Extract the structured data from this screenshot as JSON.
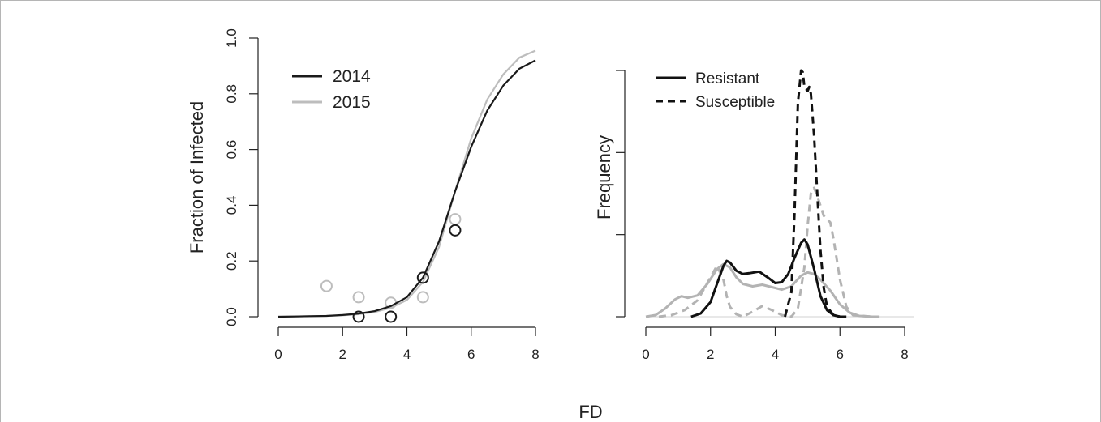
{
  "shared_xlabel": "FD",
  "chart_data": [
    {
      "type": "line",
      "title": "",
      "xlabel": "",
      "ylabel": "Fraction of Infected",
      "xlim": [
        0,
        8
      ],
      "ylim": [
        0,
        1
      ],
      "xticks": [
        "0",
        "2",
        "4",
        "6",
        "8"
      ],
      "yticks": [
        "0.0",
        "0.2",
        "0.4",
        "0.6",
        "0.8",
        "1.0"
      ],
      "legend_position": "top-left",
      "series": [
        {
          "name": "2014",
          "color": "#1a1a1a",
          "curve_x": [
            0,
            0.5,
            1,
            1.5,
            2,
            2.5,
            3,
            3.5,
            4,
            4.5,
            5,
            5.5,
            6,
            6.5,
            7,
            7.5,
            8
          ],
          "curve_y": [
            0.0,
            0.001,
            0.002,
            0.003,
            0.006,
            0.011,
            0.02,
            0.038,
            0.07,
            0.14,
            0.27,
            0.45,
            0.61,
            0.74,
            0.83,
            0.89,
            0.92
          ],
          "points_x": [
            2.5,
            3.5,
            4.5,
            5.5
          ],
          "points_y": [
            0.0,
            0.0,
            0.14,
            0.31
          ]
        },
        {
          "name": "2015",
          "color": "#bdbdbd",
          "curve_x": [
            0,
            0.5,
            1,
            1.5,
            2,
            2.5,
            3,
            3.5,
            4,
            4.5,
            5,
            5.5,
            6,
            6.5,
            7,
            7.5,
            8
          ],
          "curve_y": [
            0.0,
            0.001,
            0.002,
            0.003,
            0.005,
            0.009,
            0.017,
            0.032,
            0.06,
            0.125,
            0.25,
            0.45,
            0.64,
            0.78,
            0.87,
            0.93,
            0.955
          ],
          "points_x": [
            1.5,
            2.5,
            3.5,
            4.5,
            5.5
          ],
          "points_y": [
            0.11,
            0.07,
            0.05,
            0.07,
            0.35
          ]
        }
      ]
    },
    {
      "type": "line",
      "title": "",
      "xlabel": "",
      "ylabel": "Frequency",
      "xlim": [
        0,
        8
      ],
      "ylim": [
        0,
        0.3
      ],
      "xticks": [
        "0",
        "2",
        "4",
        "6",
        "8"
      ],
      "yticks": [
        "",
        "",
        "",
        ""
      ],
      "legend_position": "top-left",
      "legend": [
        {
          "label": "Resistant",
          "style": "solid"
        },
        {
          "label": "Susceptible",
          "style": "dashed"
        }
      ],
      "series": [
        {
          "group": "Resistant",
          "year": "2014",
          "color": "#111111",
          "dash": "",
          "x": [
            1.4,
            1.7,
            2.0,
            2.2,
            2.4,
            2.5,
            2.6,
            2.8,
            3.0,
            3.2,
            3.5,
            3.8,
            4.0,
            4.2,
            4.4,
            4.6,
            4.8,
            4.9,
            5.0,
            5.2,
            5.4,
            5.6,
            5.8,
            6.0,
            6.2
          ],
          "y": [
            0.0,
            0.004,
            0.018,
            0.04,
            0.062,
            0.068,
            0.066,
            0.056,
            0.052,
            0.053,
            0.055,
            0.047,
            0.041,
            0.042,
            0.052,
            0.072,
            0.09,
            0.094,
            0.088,
            0.058,
            0.025,
            0.008,
            0.002,
            0.0,
            0.0
          ]
        },
        {
          "group": "Resistant",
          "year": "2015",
          "color": "#b3b3b3",
          "dash": "",
          "x": [
            0,
            0.3,
            0.6,
            0.9,
            1.1,
            1.3,
            1.6,
            1.9,
            2.2,
            2.4,
            2.6,
            2.8,
            3.0,
            3.3,
            3.6,
            3.9,
            4.2,
            4.5,
            4.8,
            5.0,
            5.2,
            5.4,
            5.7,
            6.0,
            6.3,
            6.6,
            7.0,
            7.2
          ],
          "y": [
            0.0,
            0.002,
            0.01,
            0.021,
            0.025,
            0.023,
            0.026,
            0.04,
            0.058,
            0.064,
            0.06,
            0.048,
            0.04,
            0.037,
            0.039,
            0.036,
            0.033,
            0.037,
            0.05,
            0.054,
            0.052,
            0.045,
            0.032,
            0.015,
            0.005,
            0.001,
            0.0,
            0.0
          ]
        },
        {
          "group": "Susceptible",
          "year": "2014",
          "color": "#111111",
          "dash": "9,6",
          "x": [
            4.3,
            4.5,
            4.6,
            4.7,
            4.8,
            4.85,
            4.9,
            5.0,
            5.05,
            5.1,
            5.2,
            5.3,
            5.4,
            5.5,
            5.6,
            5.8,
            6.0
          ],
          "y": [
            0.0,
            0.03,
            0.13,
            0.26,
            0.3,
            0.298,
            0.28,
            0.275,
            0.28,
            0.272,
            0.22,
            0.15,
            0.08,
            0.035,
            0.012,
            0.002,
            0.0
          ]
        },
        {
          "group": "Susceptible",
          "year": "2015",
          "color": "#b3b3b3",
          "dash": "9,6",
          "x": [
            0.4,
            0.8,
            1.2,
            1.6,
            2.0,
            2.2,
            2.4,
            2.5,
            2.6,
            2.8,
            3.0,
            3.3,
            3.6,
            3.9,
            4.2,
            4.5,
            4.7,
            4.9,
            5.0,
            5.1,
            5.2,
            5.3,
            5.5,
            5.7,
            5.8,
            6.0,
            6.2,
            6.4,
            7.0
          ],
          "y": [
            0.0,
            0.002,
            0.008,
            0.02,
            0.048,
            0.062,
            0.045,
            0.025,
            0.012,
            0.003,
            0.0,
            0.006,
            0.013,
            0.008,
            0.002,
            0.0,
            0.01,
            0.06,
            0.11,
            0.15,
            0.157,
            0.147,
            0.123,
            0.115,
            0.095,
            0.045,
            0.012,
            0.002,
            0.0
          ]
        }
      ]
    }
  ]
}
